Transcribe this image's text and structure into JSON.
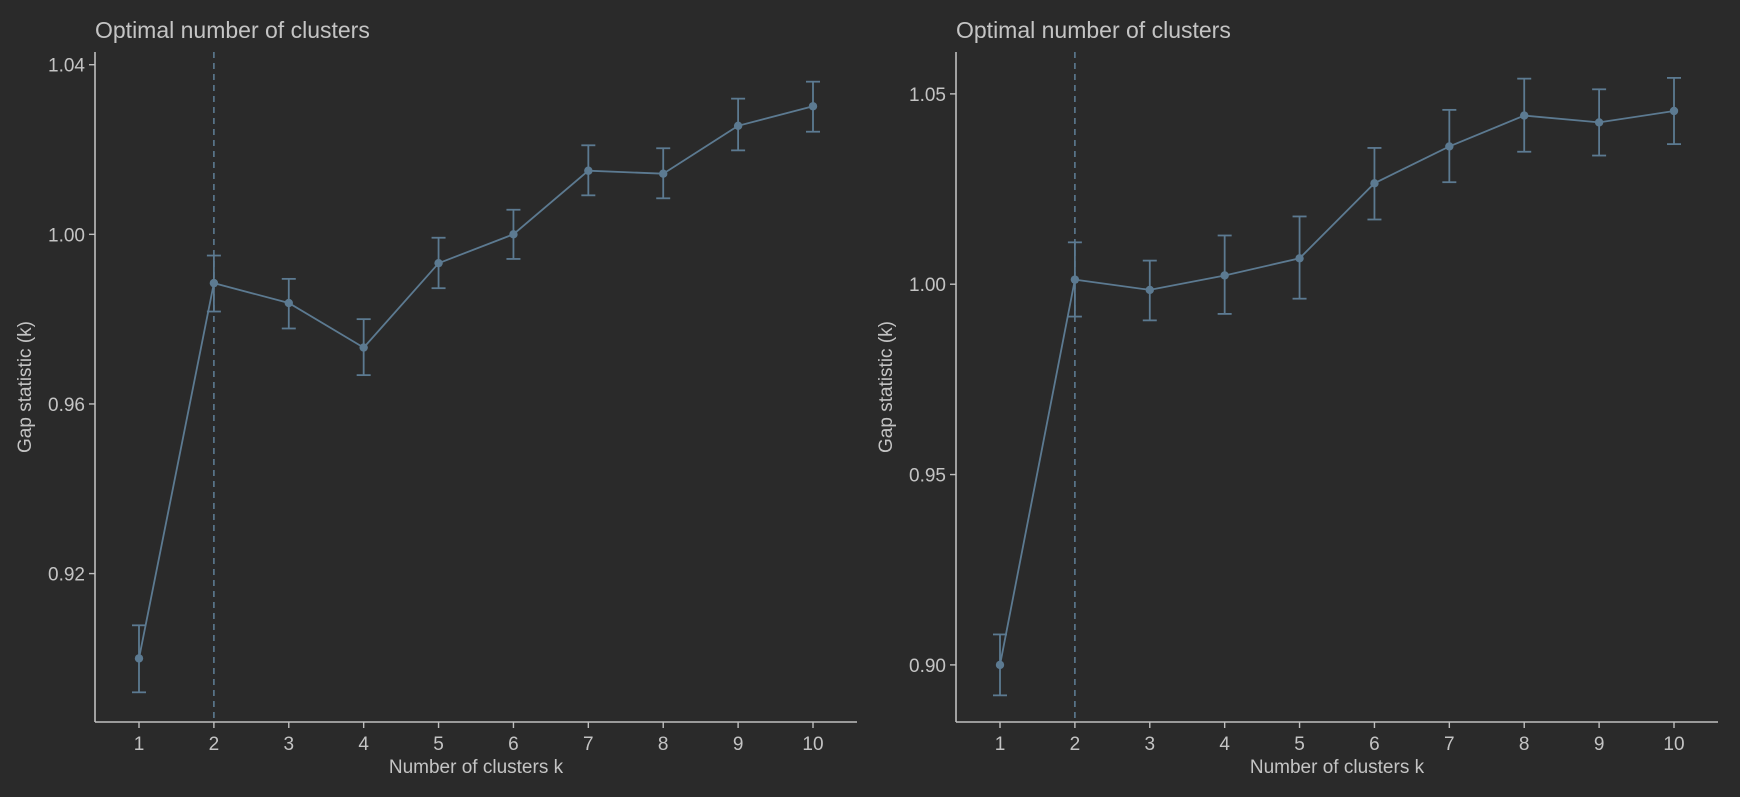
{
  "colors": {
    "background": "#2a2a2a",
    "series": "#5c7a91",
    "axis": "#bfbfbf",
    "text": "#c4c4c4"
  },
  "chart_data": [
    {
      "type": "line",
      "title": "Optimal number of clusters",
      "xlabel": "Number of clusters k",
      "ylabel": "Gap statistic (k)",
      "x": [
        1,
        2,
        3,
        4,
        5,
        6,
        7,
        8,
        9,
        10
      ],
      "series": [
        {
          "values": [
            0.9,
            0.9885,
            0.9838,
            0.9733,
            0.9932,
            1.0,
            1.015,
            1.0143,
            1.0256,
            1.0302
          ],
          "error_low": [
            0.892,
            0.9818,
            0.9778,
            0.9668,
            0.9873,
            0.9942,
            1.0092,
            1.0085,
            1.0198,
            1.0242
          ],
          "error_high": [
            0.9078,
            0.995,
            0.9895,
            0.98,
            0.9992,
            1.0058,
            1.021,
            1.0203,
            1.032,
            1.036
          ],
          "marker": "point",
          "error_bars": true
        }
      ],
      "optimal_k": 2,
      "ylim": [
        0.885,
        1.043
      ],
      "yticks": [
        0.92,
        0.96,
        1.0,
        1.04
      ],
      "ytick_labels": [
        "0.92",
        "0.96",
        "1.00",
        "1.04"
      ],
      "xticks": [
        1,
        2,
        3,
        4,
        5,
        6,
        7,
        8,
        9,
        10
      ],
      "xtick_labels": [
        "1",
        "2",
        "3",
        "4",
        "5",
        "6",
        "7",
        "8",
        "9",
        "10"
      ],
      "grid": false,
      "legend": "none"
    },
    {
      "type": "line",
      "title": "Optimal number of clusters",
      "xlabel": "Number of clusters k",
      "ylabel": "Gap statistic (k)",
      "x": [
        1,
        2,
        3,
        4,
        5,
        6,
        7,
        8,
        9,
        10
      ],
      "series": [
        {
          "values": [
            0.9,
            1.0012,
            0.9985,
            1.0023,
            1.0068,
            1.0265,
            1.0362,
            1.0443,
            1.0425,
            1.0455
          ],
          "error_low": [
            0.892,
            0.9915,
            0.9905,
            0.9922,
            0.9962,
            1.017,
            1.0268,
            1.0348,
            1.0338,
            1.0368
          ],
          "error_high": [
            0.908,
            1.011,
            1.0062,
            1.0128,
            1.0178,
            1.0358,
            1.0458,
            1.054,
            1.0512,
            1.0542
          ],
          "marker": "point",
          "error_bars": true
        }
      ],
      "optimal_k": 2,
      "ylim": [
        0.885,
        1.061
      ],
      "yticks": [
        0.9,
        0.95,
        1.0,
        1.05
      ],
      "ytick_labels": [
        "0.90",
        "0.95",
        "1.00",
        "1.05"
      ],
      "xticks": [
        1,
        2,
        3,
        4,
        5,
        6,
        7,
        8,
        9,
        10
      ],
      "xtick_labels": [
        "1",
        "2",
        "3",
        "4",
        "5",
        "6",
        "7",
        "8",
        "9",
        "10"
      ],
      "grid": false,
      "legend": "none"
    }
  ]
}
